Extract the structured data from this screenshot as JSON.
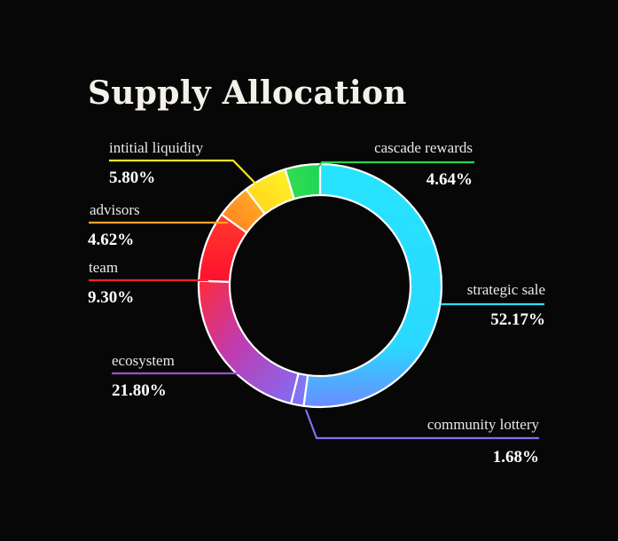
{
  "chart_data": {
    "type": "donut",
    "title": "Supply Allocation",
    "slices": [
      {
        "name": "strategic sale",
        "value": 52.17,
        "label": "52.17%",
        "color": "#29e0ff"
      },
      {
        "name": "community lottery",
        "value": 1.68,
        "label": "1.68%",
        "color": "#7f72f0"
      },
      {
        "name": "ecosystem",
        "value": 21.8,
        "label": "21.80%",
        "color": "#9c4fd3"
      },
      {
        "name": "team",
        "value": 9.3,
        "label": "9.30%",
        "color": "#ff1e2e"
      },
      {
        "name": "advisors",
        "value": 4.62,
        "label": "4.62%",
        "color": "#ffa126"
      },
      {
        "name": "intitial liquidity",
        "value": 5.8,
        "label": "5.80%",
        "color": "#ffe51c"
      },
      {
        "name": "cascade rewards",
        "value": 4.64,
        "label": "4.64%",
        "color": "#22d651"
      }
    ]
  }
}
